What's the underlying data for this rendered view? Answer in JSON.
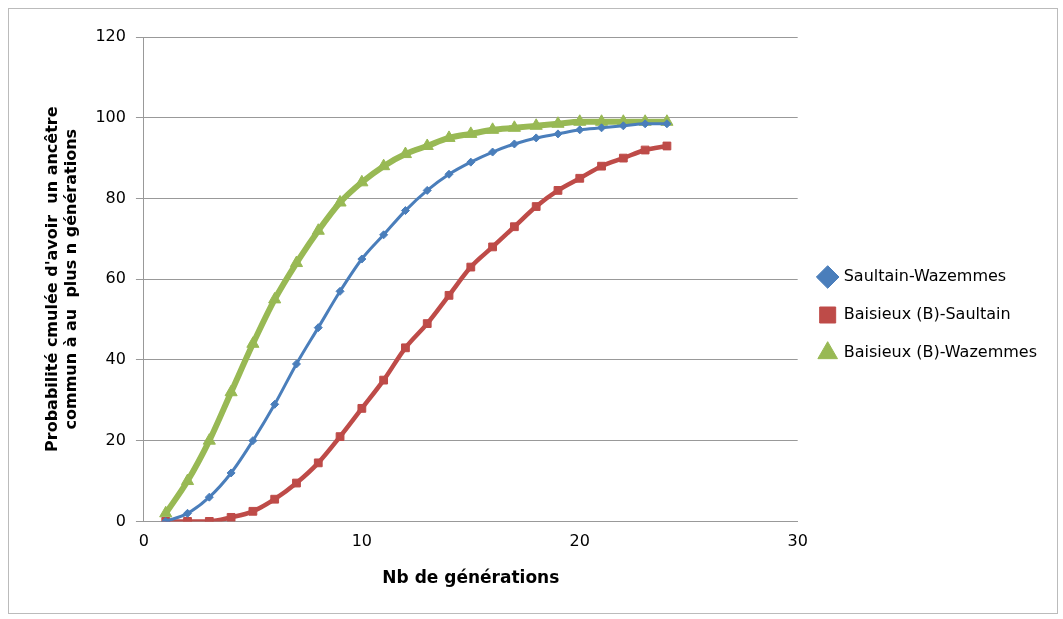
{
  "chart_data": {
    "type": "line",
    "xlabel": "Nb de générations",
    "ylabel": "Probabilité cmulée d'avoir  un ancêtre\ncommun à au  plus n générations",
    "x": [
      1,
      2,
      3,
      4,
      5,
      6,
      7,
      8,
      9,
      10,
      11,
      12,
      13,
      14,
      15,
      16,
      17,
      18,
      19,
      20,
      21,
      22,
      23,
      24
    ],
    "xlim": [
      0,
      30
    ],
    "xticks": [
      0,
      10,
      20,
      30
    ],
    "ylim": [
      0,
      120
    ],
    "yticks": [
      0,
      20,
      40,
      60,
      80,
      100,
      120
    ],
    "grid": "y",
    "legend": "right",
    "line_style": "solid",
    "series": [
      {
        "name": "Saultain-Wazemmes",
        "color": "#4a7ebb",
        "marker": "diamond",
        "values": [
          0,
          2,
          6,
          12,
          20,
          29,
          39,
          48,
          57,
          65,
          71,
          77,
          82,
          86,
          89,
          91.5,
          93.5,
          95,
          96,
          97,
          97.5,
          98,
          98.5,
          98.5
        ]
      },
      {
        "name": "Baisieux (B)-Saultain",
        "color": "#be4b48",
        "marker": "square",
        "values": [
          0,
          0,
          0,
          1,
          2.5,
          5.5,
          9.5,
          14.5,
          21,
          28,
          35,
          43,
          49,
          56,
          63,
          68,
          73,
          78,
          82,
          85,
          88,
          90,
          92,
          93
        ]
      },
      {
        "name": "Baisieux (B)-Wazemmes",
        "color": "#98b954",
        "marker": "triangle",
        "values": [
          2,
          10,
          20,
          32,
          44,
          55,
          64,
          72,
          79,
          84,
          88,
          91,
          93,
          95,
          96,
          97,
          97.5,
          98,
          98.5,
          99,
          99,
          99,
          99,
          99
        ]
      }
    ]
  }
}
